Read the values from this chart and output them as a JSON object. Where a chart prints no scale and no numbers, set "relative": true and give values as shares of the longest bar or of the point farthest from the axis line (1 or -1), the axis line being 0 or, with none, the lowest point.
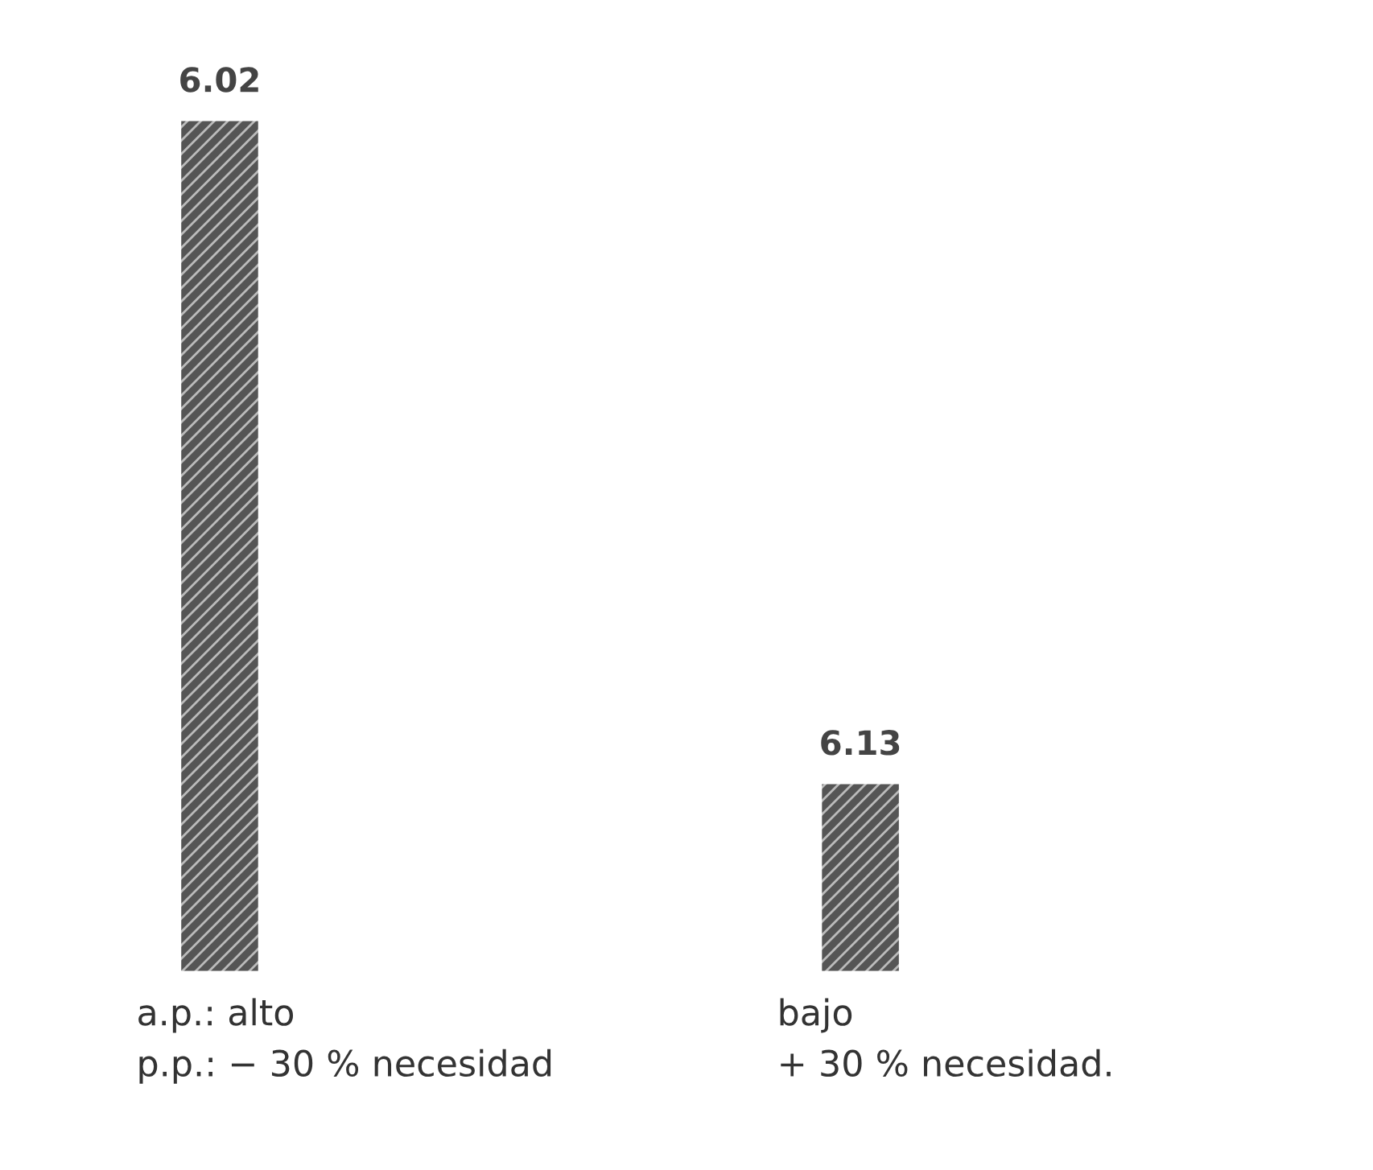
{
  "chart_data": {
    "type": "bar",
    "relative": true,
    "stacked": true,
    "categories": [
      "a.p.: alto\np.p.: − 30 % necesidad",
      "bajo\n+ 30 % necesidad."
    ],
    "series": [
      {
        "color": "#555555",
        "values": [
          0.05,
          0.05
        ]
      },
      {
        "color": "#555555",
        "values": [
          0.95,
          0.17
        ]
      }
    ],
    "annotations": [
      "6.02",
      "6.13"
    ]
  }
}
